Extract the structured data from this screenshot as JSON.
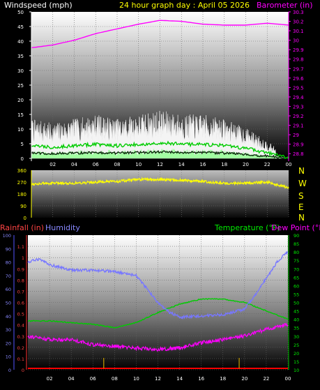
{
  "header": {
    "windspeed_label": "Windspeed (mph)",
    "graph_title": "24 hour graph day : April 05 2026",
    "barometer_label": "Barometer (in)"
  },
  "middle": {
    "compass_letters": [
      "N",
      "W",
      "S",
      "E",
      "N"
    ]
  },
  "bottom_header": {
    "rainfall_label": "Rainfall (in)",
    "humidity_label": "Humidity",
    "temperature_label": "Temperature (°F)",
    "dewpoint_label": "Dew Point (°F)"
  },
  "colors": {
    "windspeed": "#ffffff",
    "wind_avg": "#00cc00",
    "wind_low": "#99ff99",
    "barometer": "#ff00ff",
    "direction": "#ffff00",
    "humidity": "#7777ff",
    "temperature": "#00cc00",
    "dewpoint": "#ff00ff",
    "rainfall": "#ff0000"
  },
  "chart_data": [
    {
      "type": "line",
      "title": "24 hour graph day : April 05 2026",
      "x": [
        "02",
        "04",
        "06",
        "08",
        "10",
        "12",
        "14",
        "16",
        "18",
        "20",
        "22",
        "00"
      ],
      "ylabel": "Windspeed (mph)",
      "y2label": "Barometer (in)",
      "y_ticks": [
        "0",
        "5",
        "10",
        "15",
        "20",
        "25",
        "30",
        "35",
        "40",
        "45",
        "50"
      ],
      "y2_ticks": [
        "28.8",
        "28.9",
        "29",
        "29.1",
        "29.2",
        "29.3",
        "29.4",
        "29.5",
        "29.6",
        "29.7",
        "29.8",
        "29.9",
        "30",
        "30.1",
        "30.2",
        "30.3"
      ],
      "ylim": [
        0,
        50
      ],
      "y2lim": [
        28.75,
        30.3
      ],
      "series": [
        {
          "name": "Windspeed (mph)",
          "axis": "left",
          "x": [
            0,
            2,
            4,
            6,
            8,
            10,
            12,
            14,
            16,
            18,
            20,
            22,
            24
          ],
          "values": [
            9,
            8,
            9,
            10,
            9,
            10,
            11,
            10,
            10,
            9,
            7,
            4,
            0
          ]
        },
        {
          "name": "Barometer (in)",
          "axis": "right",
          "x": [
            0,
            2,
            4,
            6,
            8,
            10,
            12,
            14,
            16,
            18,
            20,
            22,
            24
          ],
          "values": [
            29.92,
            29.95,
            30.0,
            30.07,
            30.12,
            30.17,
            30.21,
            30.2,
            30.17,
            30.16,
            30.16,
            30.18,
            30.16
          ]
        }
      ]
    },
    {
      "type": "line",
      "title": "",
      "x": [
        "02",
        "04",
        "06",
        "08",
        "10",
        "12",
        "14",
        "16",
        "18",
        "20",
        "22",
        "00"
      ],
      "y_ticks": [
        "0",
        "90",
        "180",
        "270",
        "360"
      ],
      "ylim": [
        0,
        360
      ],
      "series": [
        {
          "name": "",
          "x": [
            0,
            2,
            4,
            6,
            8,
            10,
            12,
            14,
            16,
            18,
            20,
            22,
            24
          ],
          "values": [
            255,
            262,
            262,
            270,
            275,
            290,
            290,
            285,
            275,
            262,
            262,
            270,
            225
          ]
        }
      ]
    },
    {
      "type": "line",
      "title": "",
      "x": [
        "02",
        "04",
        "06",
        "08",
        "10",
        "12",
        "14",
        "16",
        "18",
        "20",
        "22",
        "00"
      ],
      "y_ticks_rain": [
        "0",
        "0.1",
        "0.2",
        "0.3",
        "0.4",
        "0.5",
        "0.6",
        "0.7",
        "0.8",
        "0.9",
        "1",
        "1.1"
      ],
      "y_ticks_humidity": [
        "0",
        "10",
        "20",
        "30",
        "40",
        "50",
        "60",
        "70",
        "80",
        "90",
        "100"
      ],
      "y_ticks_temp": [
        "10",
        "15",
        "20",
        "25",
        "30",
        "35",
        "40",
        "45",
        "50",
        "55",
        "60",
        "65",
        "70",
        "75",
        "80",
        "85",
        "90"
      ],
      "rain_lim": [
        0,
        1.2
      ],
      "humidity_lim": [
        0,
        100
      ],
      "temp_lim": [
        10,
        90
      ],
      "series": [
        {
          "name": "Humidity",
          "axis": "humidity",
          "x": [
            0,
            1,
            2,
            4,
            6,
            8,
            10,
            11,
            12,
            13,
            14,
            16,
            18,
            20,
            21,
            22,
            23,
            24
          ],
          "values": [
            80,
            82,
            78,
            74,
            74,
            73,
            70,
            60,
            50,
            43,
            39,
            40,
            41,
            45,
            56,
            68,
            80,
            88
          ]
        },
        {
          "name": "Temperature (°F)",
          "axis": "temp",
          "x": [
            0,
            2,
            4,
            6,
            8,
            10,
            12,
            14,
            16,
            18,
            20,
            22,
            24
          ],
          "values": [
            39,
            39,
            38,
            37,
            35,
            38,
            44,
            49,
            52,
            52,
            50,
            45,
            40
          ]
        },
        {
          "name": "Dew Point (°F)",
          "axis": "temp",
          "x": [
            0,
            2,
            4,
            6,
            8,
            10,
            12,
            14,
            16,
            18,
            20,
            22,
            24
          ],
          "values": [
            30,
            28,
            28,
            25,
            24,
            23,
            22,
            23,
            26,
            28,
            30,
            34,
            37
          ]
        },
        {
          "name": "Rainfall (in)",
          "axis": "rain",
          "x": [
            0,
            24
          ],
          "values": [
            0,
            0
          ]
        }
      ]
    }
  ]
}
